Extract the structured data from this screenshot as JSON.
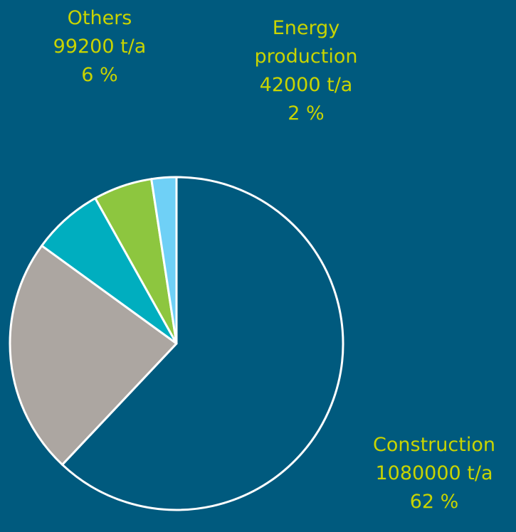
{
  "chart_data": {
    "type": "pie",
    "categories": [
      "Construction",
      null,
      null,
      "Others",
      "Energy production"
    ],
    "values": [
      1080000,
      400000,
      120000,
      99200,
      42000
    ],
    "value_labels": [
      "1080000 t/a",
      null,
      null,
      "99200 t/a",
      "42000 t/a"
    ],
    "percent_labels": [
      "62 %",
      null,
      null,
      "6 %",
      "2 %"
    ],
    "colors": [
      "#005a7e",
      "#aca6a1",
      "#00aebf",
      "#8dc63f",
      "#6fd0f6"
    ],
    "label_color": "#c8d400"
  }
}
